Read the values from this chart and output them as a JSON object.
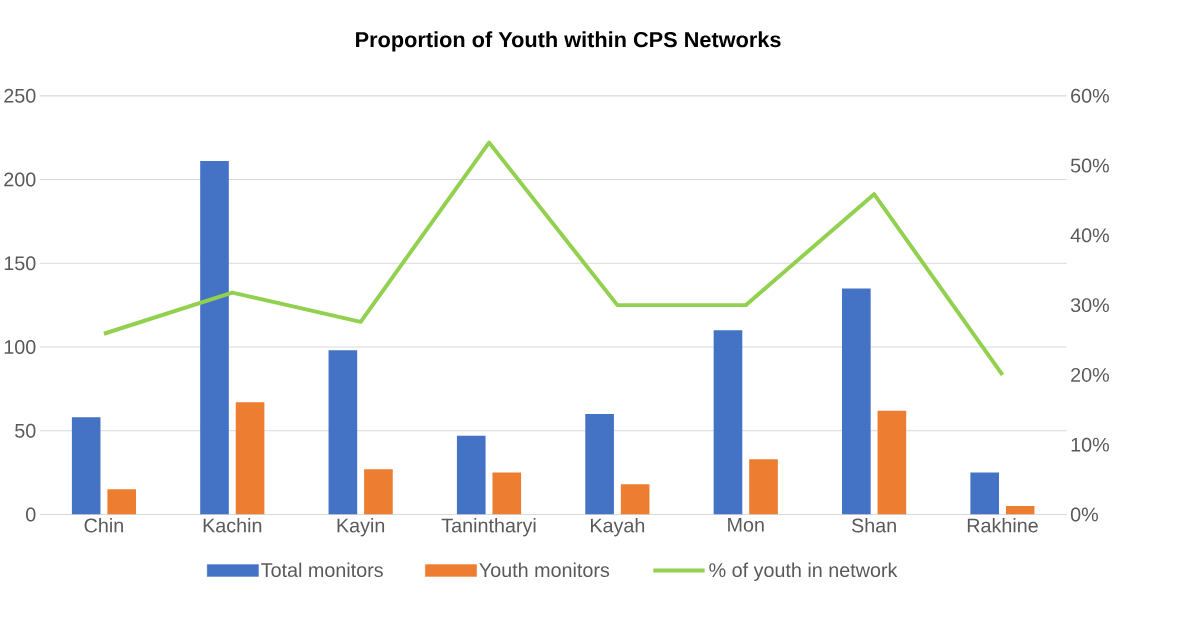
{
  "chart_data": {
    "type": "bar",
    "title": "Proportion of Youth within CPS Networks",
    "categories": [
      "Chin",
      "Kachin",
      "Kayin",
      "Tanintharyi",
      "Kayah",
      "Mon",
      "Shan",
      "Rakhine"
    ],
    "series": [
      {
        "name": "Total monitors",
        "color": "#4472c4",
        "values": [
          58,
          211,
          98,
          47,
          60,
          110,
          135,
          25
        ]
      },
      {
        "name": "Youth monitors",
        "color": "#ed7d31",
        "values": [
          15,
          67,
          27,
          25,
          18,
          33,
          62,
          5
        ]
      },
      {
        "name": "% of youth in network",
        "type": "line",
        "axis": "y2",
        "color": "#92d050",
        "values": [
          25.9,
          31.8,
          27.6,
          53.3,
          30,
          30,
          45.9,
          20
        ]
      }
    ],
    "ylim": [
      0,
      250
    ],
    "yticks": [
      0,
      50,
      100,
      150,
      200,
      250
    ],
    "y2lim": [
      0,
      60
    ],
    "y2ticks": [
      {
        "value": 0,
        "label": "0%"
      },
      {
        "value": 10,
        "label": "10%"
      },
      {
        "value": 20,
        "label": "20%"
      },
      {
        "value": 30,
        "label": "30%"
      },
      {
        "value": 40,
        "label": "40%"
      },
      {
        "value": 50,
        "label": "50%"
      },
      {
        "value": 60,
        "label": "60%"
      }
    ],
    "grid": "y",
    "legend": "bottom",
    "marker": "none"
  }
}
